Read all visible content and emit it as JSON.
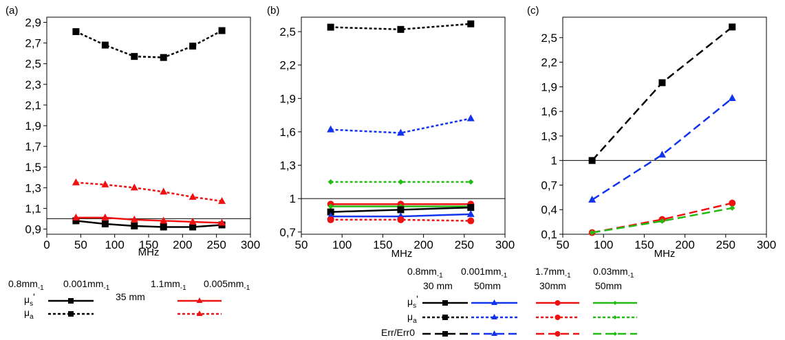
{
  "colors": {
    "black": "#000000",
    "red": "#ee1111",
    "blue": "#1133ee",
    "green": "#22bb11"
  },
  "chart_data": [
    {
      "panel": "(a)",
      "type": "line",
      "xlabel": "MHz",
      "xlim": [
        0,
        300
      ],
      "ylim": [
        0.85,
        2.95
      ],
      "xticks": [
        "0",
        "50",
        "100",
        "150",
        "200",
        "250",
        "300"
      ],
      "yticks": [
        "0,9",
        "1,1",
        "1,3",
        "1,5",
        "1,7",
        "1,9",
        "2,1",
        "2,3",
        "2,5",
        "2,7",
        "2,9"
      ],
      "reference_line": 1,
      "series": [
        {
          "id": "a-mus-black",
          "color": "#000000",
          "dash": "solid",
          "marker": "square",
          "x": [
            43,
            86,
            129,
            172,
            215,
            258
          ],
          "y": [
            0.98,
            0.95,
            0.93,
            0.92,
            0.92,
            0.94
          ]
        },
        {
          "id": "a-mua-black",
          "color": "#000000",
          "dash": "dotted",
          "marker": "square",
          "x": [
            43,
            86,
            129,
            172,
            215,
            258
          ],
          "y": [
            2.81,
            2.68,
            2.57,
            2.56,
            2.67,
            2.82
          ]
        },
        {
          "id": "a-mus-red",
          "color": "#ee1111",
          "dash": "solid",
          "marker": "triangle",
          "x": [
            43,
            86,
            129,
            172,
            215,
            258
          ],
          "y": [
            1.01,
            1.01,
            0.99,
            0.98,
            0.97,
            0.96
          ]
        },
        {
          "id": "a-mua-red",
          "color": "#ee1111",
          "dash": "dotted",
          "marker": "triangle",
          "x": [
            43,
            86,
            129,
            172,
            215,
            258
          ],
          "y": [
            1.35,
            1.33,
            1.3,
            1.26,
            1.21,
            1.17
          ]
        }
      ]
    },
    {
      "panel": "(b)",
      "type": "line",
      "xlabel": "MHz",
      "xlim": [
        50,
        300
      ],
      "ylim": [
        0.68,
        2.63
      ],
      "xticks": [
        "50",
        "100",
        "150",
        "200",
        "250",
        "300"
      ],
      "yticks": [
        "0,7",
        "1",
        "1,3",
        "1,6",
        "1,9",
        "2,2",
        "2,5"
      ],
      "reference_line": 1,
      "series": [
        {
          "id": "b-mua-black",
          "color": "#000000",
          "dash": "dotted",
          "marker": "square",
          "x": [
            86,
            172,
            258
          ],
          "y": [
            2.54,
            2.52,
            2.57
          ]
        },
        {
          "id": "b-mua-blue",
          "color": "#1133ee",
          "dash": "dotted",
          "marker": "triangle",
          "x": [
            86,
            172,
            258
          ],
          "y": [
            1.62,
            1.59,
            1.72
          ]
        },
        {
          "id": "b-mua-green",
          "color": "#22bb11",
          "dash": "dotted",
          "marker": "diamond",
          "x": [
            86,
            172,
            258
          ],
          "y": [
            1.15,
            1.15,
            1.15
          ]
        },
        {
          "id": "b-mus-red",
          "color": "#ee1111",
          "dash": "solid",
          "marker": "circle",
          "x": [
            86,
            172,
            258
          ],
          "y": [
            0.95,
            0.95,
            0.95
          ]
        },
        {
          "id": "b-mus-green",
          "color": "#22bb11",
          "dash": "solid",
          "marker": "diamond",
          "x": [
            86,
            172,
            258
          ],
          "y": [
            0.93,
            0.93,
            0.93
          ]
        },
        {
          "id": "b-mus-black",
          "color": "#000000",
          "dash": "solid",
          "marker": "square",
          "x": [
            86,
            172,
            258
          ],
          "y": [
            0.88,
            0.9,
            0.92
          ]
        },
        {
          "id": "b-mus-blue",
          "color": "#1133ee",
          "dash": "solid",
          "marker": "triangle",
          "x": [
            86,
            172,
            258
          ],
          "y": [
            0.84,
            0.84,
            0.86
          ]
        },
        {
          "id": "b-mua-red",
          "color": "#ee1111",
          "dash": "dotted",
          "marker": "circle",
          "x": [
            86,
            172,
            258
          ],
          "y": [
            0.81,
            0.81,
            0.8
          ]
        }
      ]
    },
    {
      "panel": "(c)",
      "type": "line",
      "xlabel": "MHz",
      "xlim": [
        50,
        300
      ],
      "ylim": [
        0.1,
        2.75
      ],
      "xticks": [
        "50",
        "100",
        "150",
        "200",
        "250",
        "300"
      ],
      "yticks": [
        "0,1",
        "0,4",
        "0,7",
        "1",
        "1,3",
        "1,6",
        "1,9",
        "2,2",
        "2,5"
      ],
      "reference_line": 1,
      "series": [
        {
          "id": "c-err-black",
          "color": "#000000",
          "dash": "dashed",
          "marker": "square",
          "x": [
            86,
            172,
            258
          ],
          "y": [
            1.0,
            1.95,
            2.63
          ]
        },
        {
          "id": "c-err-blue",
          "color": "#1133ee",
          "dash": "dashed",
          "marker": "triangle",
          "x": [
            86,
            172,
            258
          ],
          "y": [
            0.52,
            1.07,
            1.76
          ]
        },
        {
          "id": "c-err-red",
          "color": "#ee1111",
          "dash": "dashed",
          "marker": "circle",
          "x": [
            86,
            172,
            258
          ],
          "y": [
            0.12,
            0.28,
            0.48
          ]
        },
        {
          "id": "c-err-green",
          "color": "#22bb11",
          "dash": "dashed",
          "marker": "diamond",
          "x": [
            86,
            172,
            258
          ],
          "y": [
            0.12,
            0.26,
            0.42
          ]
        }
      ]
    }
  ],
  "legend_a": {
    "group1": {
      "mus": "0.8mm",
      "mus_sub": "-1",
      "mua": "0.001mm",
      "mua_sub": "-1"
    },
    "group2": {
      "mus": "1.1mm",
      "mus_sub": "-1",
      "mua": "0.005mm",
      "mua_sub": "-1"
    },
    "depth": "35 mm",
    "row1": {
      "sym": "μ",
      "sub": "s",
      "prime": "'"
    },
    "row2": {
      "sym": "μ",
      "sub": "a"
    }
  },
  "legend_bc": {
    "group1": {
      "mus": "0.8mm",
      "mus_sub": "-1",
      "mua": "0.001mm",
      "mua_sub": "-1"
    },
    "group2": {
      "mus": "1.7mm",
      "mus_sub": "-1",
      "mua": "0.03mm",
      "mua_sub": "-1"
    },
    "depths": [
      "30 mm",
      "50mm",
      "30mm",
      "50mm"
    ],
    "row1": {
      "sym": "μ",
      "sub": "s",
      "prime": "'"
    },
    "row2": {
      "sym": "μ",
      "sub": "a"
    },
    "row3": "Err/Err0"
  }
}
